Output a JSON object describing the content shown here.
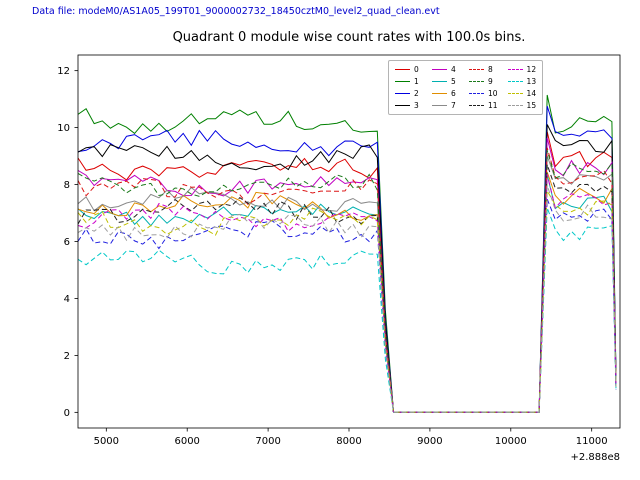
{
  "header": {
    "label": "Data file: modeM0/AS1A05_199T01_9000002732_18450cztM0_level2_quad_clean.evt",
    "color": "#0000cd"
  },
  "chart_data": {
    "type": "line",
    "title": "Quadrant 0 module wise count rates with 100.0s bins.",
    "x_offset_label": "+2.888e8",
    "xlabel": "",
    "ylabel": "",
    "grid": false,
    "legend_position": "upper center-right",
    "xlim": [
      4650,
      11350
    ],
    "ylim": [
      -0.55,
      12.55
    ],
    "xticks": [
      5000,
      6000,
      7000,
      8000,
      9000,
      10000,
      11000
    ],
    "yticks": [
      0,
      2,
      4,
      6,
      8,
      10,
      12
    ],
    "bin_width_s": 100,
    "x_start": 4650,
    "on1_end": 8350,
    "drop_x": 8450,
    "zero_start": 8550,
    "zero_end": 10350,
    "rise_x": 10450,
    "plateau2_end": 11250,
    "end_x": 11300,
    "noise_amplitude": 0.45,
    "rise_overshoot": 0.8,
    "series": [
      {
        "label": "0",
        "color": "#dc0000",
        "dashed": false,
        "level1": 8.55,
        "level2": 8.9,
        "end": 1.0
      },
      {
        "label": "1",
        "color": "#008000",
        "dashed": false,
        "level1": 10.2,
        "level2": 10.1,
        "end": 1.2
      },
      {
        "label": "2",
        "color": "#0000e0",
        "dashed": false,
        "level1": 9.45,
        "level2": 9.9,
        "end": 1.1
      },
      {
        "label": "3",
        "color": "#000000",
        "dashed": false,
        "level1": 9.0,
        "level2": 9.3,
        "end": 1.1
      },
      {
        "label": "4",
        "color": "#c000c0",
        "dashed": false,
        "level1": 8.05,
        "level2": 8.6,
        "end": 1.0
      },
      {
        "label": "5",
        "color": "#00b0b0",
        "dashed": false,
        "level1": 7.0,
        "level2": 7.3,
        "end": 0.9
      },
      {
        "label": "6",
        "color": "#e08e00",
        "dashed": false,
        "level1": 7.25,
        "level2": 7.6,
        "end": 0.9
      },
      {
        "label": "7",
        "color": "#8a8a8a",
        "dashed": false,
        "level1": 7.45,
        "level2": 8.3,
        "end": 1.0
      },
      {
        "label": "8",
        "color": "#dc1414",
        "dashed": true,
        "level1": 7.75,
        "level2": 8.3,
        "end": 1.0
      },
      {
        "label": "9",
        "color": "#1c7a1c",
        "dashed": true,
        "level1": 7.95,
        "level2": 8.5,
        "end": 1.0
      },
      {
        "label": "10",
        "color": "#2020e0",
        "dashed": true,
        "level1": 6.25,
        "level2": 6.9,
        "end": 0.8
      },
      {
        "label": "11",
        "color": "#202020",
        "dashed": true,
        "level1": 7.1,
        "level2": 7.8,
        "end": 0.9
      },
      {
        "label": "12",
        "color": "#cc00cc",
        "dashed": true,
        "level1": 6.85,
        "level2": 7.4,
        "end": 0.9
      },
      {
        "label": "13",
        "color": "#00c8c8",
        "dashed": true,
        "level1": 5.3,
        "level2": 6.3,
        "end": 0.8
      },
      {
        "label": "14",
        "color": "#bfbf00",
        "dashed": true,
        "level1": 6.7,
        "level2": 7.2,
        "end": 0.9
      },
      {
        "label": "15",
        "color": "#9e9e9e",
        "dashed": true,
        "level1": 6.5,
        "level2": 7.0,
        "end": 0.9
      }
    ]
  }
}
